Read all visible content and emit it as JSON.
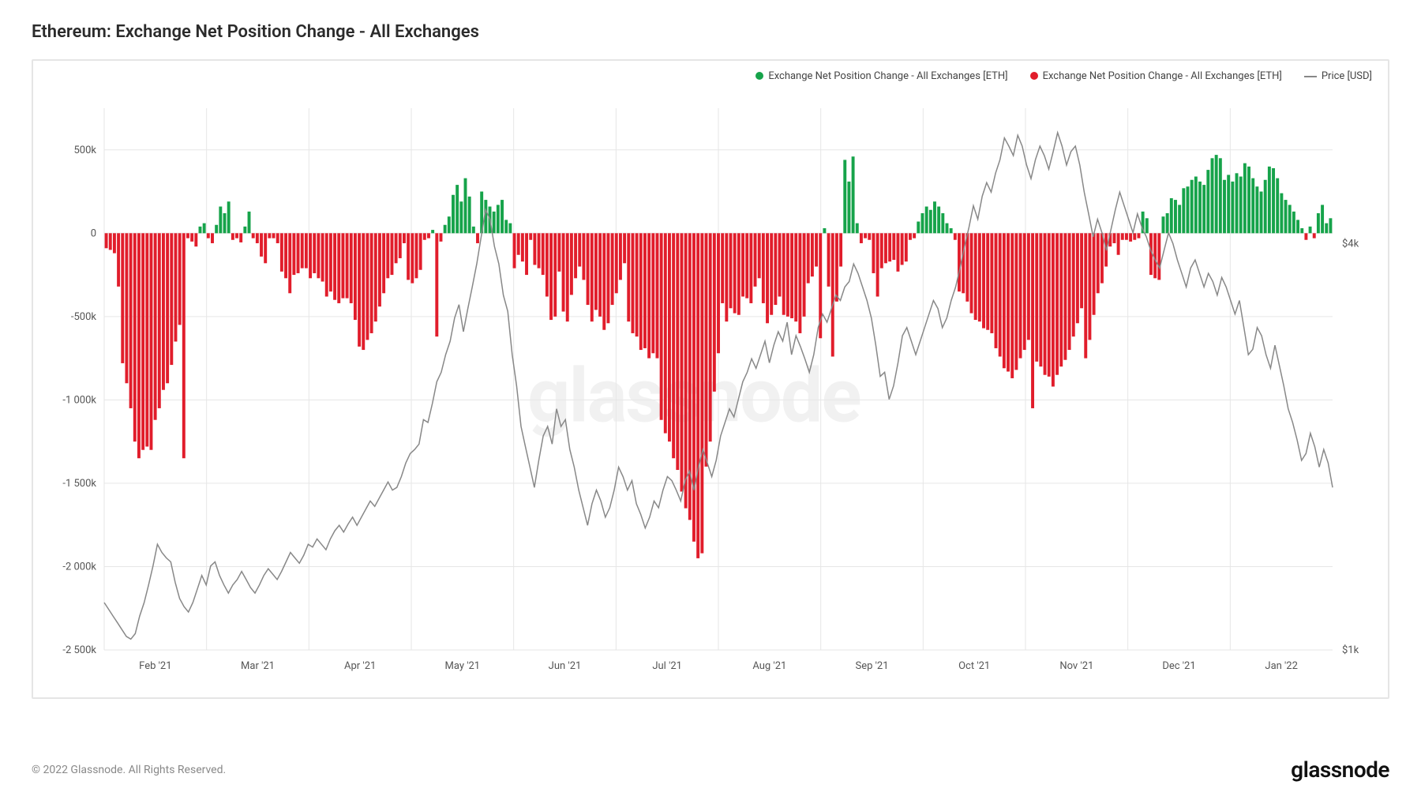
{
  "title": "Ethereum: Exchange Net Position Change - All Exchanges",
  "footer_text": "© 2022 Glassnode. All Rights Reserved.",
  "brand_text": "glassnode",
  "watermark_text": "glassnode",
  "legend": {
    "series_pos": "Exchange Net Position Change - All Exchanges [ETH]",
    "series_neg": "Exchange Net Position Change - All Exchanges [ETH]",
    "series_price": "Price [USD]"
  },
  "chart": {
    "type": "bar+line",
    "background_color": "#ffffff",
    "grid_color": "#e6e6e6",
    "border_color": "#e5e5e5",
    "colors": {
      "positive": "#16a34a",
      "negative": "#e11d2b",
      "price_line": "#8a8a8a"
    },
    "fonts": {
      "title_size": 22,
      "axis_size": 13
    },
    "y_left": {
      "min": -2500000,
      "max": 750000,
      "ticks": [
        -2500000,
        -2000000,
        -1500000,
        -1000000,
        -500000,
        0,
        500000
      ],
      "tick_labels": [
        "-2 500k",
        "-2 000k",
        "-1 500k",
        "-1 000k",
        "-500k",
        "0",
        "500k"
      ]
    },
    "y_right": {
      "label_top": "$4k",
      "label_bottom": "$1k",
      "price_min": 1000,
      "price_max": 5000
    },
    "x": {
      "months": [
        "Feb '21",
        "Mar '21",
        "Apr '21",
        "May '21",
        "Jun '21",
        "Jul '21",
        "Aug '21",
        "Sep '21",
        "Oct '21",
        "Nov '21",
        "Dec '21",
        "Jan '22"
      ]
    },
    "bars": [
      -90,
      -100,
      -120,
      -320,
      -780,
      -900,
      -1050,
      -1250,
      -1350,
      -1300,
      -1280,
      -1300,
      -1120,
      -1050,
      -940,
      -900,
      -790,
      -650,
      -550,
      -1350,
      -30,
      -50,
      -80,
      40,
      60,
      -30,
      -60,
      50,
      160,
      120,
      190,
      -40,
      -30,
      -55,
      40,
      130,
      -30,
      -60,
      -140,
      -180,
      -30,
      -30,
      -60,
      -230,
      -270,
      -360,
      -250,
      -240,
      -210,
      -210,
      -270,
      -240,
      -270,
      -290,
      -380,
      -350,
      -400,
      -420,
      -390,
      -390,
      -420,
      -520,
      -680,
      -700,
      -640,
      -600,
      -530,
      -440,
      -360,
      -270,
      -250,
      -180,
      -150,
      -60,
      -280,
      -300,
      -270,
      -220,
      -40,
      -30,
      20,
      -620,
      -50,
      50,
      100,
      230,
      290,
      190,
      330,
      220,
      40,
      -60,
      250,
      200,
      160,
      130,
      170,
      200,
      80,
      60,
      -210,
      -130,
      -170,
      -250,
      -40,
      -190,
      -210,
      -250,
      -380,
      -520,
      -500,
      -230,
      -470,
      -530,
      -370,
      -270,
      -200,
      -280,
      -430,
      -530,
      -460,
      -500,
      -580,
      -540,
      -430,
      -360,
      -280,
      -180,
      -530,
      -600,
      -620,
      -700,
      -690,
      -750,
      -720,
      -750,
      -1120,
      -1200,
      -1250,
      -1350,
      -1420,
      -1550,
      -1650,
      -1720,
      -1850,
      -1950,
      -1920,
      -1400,
      -1250,
      -950,
      -720,
      -420,
      -530,
      -450,
      -480,
      -490,
      -380,
      -390,
      -420,
      -320,
      -270,
      -420,
      -540,
      -490,
      -430,
      -380,
      -490,
      -500,
      -510,
      -530,
      -600,
      -500,
      -300,
      -260,
      -200,
      -630,
      30,
      -320,
      -740,
      -410,
      -200,
      440,
      310,
      460,
      60,
      -60,
      -30,
      -40,
      -240,
      -380,
      -210,
      -180,
      -170,
      -160,
      -230,
      -190,
      -170,
      -40,
      -30,
      70,
      120,
      160,
      140,
      190,
      160,
      120,
      60,
      30,
      -40,
      -350,
      -360,
      -410,
      -480,
      -520,
      -530,
      -570,
      -580,
      -600,
      -690,
      -740,
      -810,
      -830,
      -870,
      -820,
      -750,
      -700,
      -640,
      -1050,
      -770,
      -800,
      -850,
      -860,
      -920,
      -850,
      -800,
      -760,
      -700,
      -620,
      -540,
      -450,
      -750,
      -640,
      -490,
      -360,
      -300,
      -200,
      -80,
      -60,
      -130,
      -40,
      -40,
      -50,
      -40,
      -30,
      130,
      90,
      -250,
      -270,
      -280,
      100,
      120,
      210,
      200,
      170,
      270,
      280,
      320,
      340,
      310,
      290,
      380,
      450,
      470,
      450,
      320,
      350,
      310,
      360,
      340,
      420,
      400,
      330,
      280,
      250,
      320,
      400,
      390,
      330,
      240,
      200,
      170,
      130,
      80,
      30,
      -40,
      40,
      -30,
      120,
      170,
      60,
      90
    ],
    "bar_scale": 1000,
    "price": [
      1350,
      1300,
      1250,
      1200,
      1150,
      1100,
      1080,
      1120,
      1250,
      1350,
      1480,
      1620,
      1780,
      1720,
      1680,
      1650,
      1500,
      1380,
      1320,
      1280,
      1350,
      1450,
      1550,
      1480,
      1620,
      1650,
      1550,
      1480,
      1420,
      1480,
      1520,
      1580,
      1520,
      1460,
      1420,
      1480,
      1550,
      1600,
      1560,
      1520,
      1580,
      1650,
      1720,
      1680,
      1640,
      1700,
      1780,
      1760,
      1820,
      1780,
      1740,
      1820,
      1880,
      1920,
      1870,
      1930,
      1980,
      1920,
      1980,
      2040,
      2100,
      2060,
      2120,
      2180,
      2240,
      2180,
      2200,
      2280,
      2380,
      2450,
      2480,
      2520,
      2700,
      2680,
      2820,
      2980,
      3050,
      3180,
      3280,
      3450,
      3550,
      3350,
      3520,
      3680,
      3850,
      4050,
      4250,
      4180,
      3980,
      3850,
      3620,
      3500,
      3180,
      2950,
      2650,
      2500,
      2350,
      2200,
      2400,
      2580,
      2650,
      2520,
      2780,
      2650,
      2700,
      2480,
      2350,
      2180,
      2050,
      1920,
      2080,
      2180,
      2100,
      1980,
      2050,
      2180,
      2350,
      2280,
      2180,
      2250,
      2080,
      2000,
      1900,
      1980,
      2100,
      2050,
      2180,
      2280,
      2250,
      2180,
      2100,
      2250,
      2320,
      2180,
      2350,
      2480,
      2380,
      2280,
      2400,
      2580,
      2680,
      2780,
      2720,
      2850,
      2980,
      3050,
      3150,
      3080,
      3180,
      3280,
      3120,
      3250,
      3350,
      3280,
      3420,
      3180,
      3320,
      3240,
      3150,
      3050,
      3180,
      3380,
      3480,
      3420,
      3520,
      3620,
      3580,
      3680,
      3720,
      3850,
      3780,
      3680,
      3580,
      3450,
      3250,
      3020,
      3050,
      2850,
      2950,
      3120,
      3320,
      3380,
      3280,
      3180,
      3280,
      3380,
      3480,
      3580,
      3520,
      3380,
      3450,
      3580,
      3680,
      3820,
      3980,
      4120,
      4280,
      4180,
      4350,
      4450,
      4380,
      4520,
      4620,
      4780,
      4720,
      4650,
      4800,
      4720,
      4580,
      4480,
      4620,
      4720,
      4650,
      4550,
      4680,
      4820,
      4720,
      4580,
      4680,
      4720,
      4580,
      4380,
      4220,
      4050,
      4180,
      4080,
      3950,
      4100,
      4250,
      4380,
      4280,
      4180,
      4080,
      4220,
      4120,
      4050,
      3950,
      3880,
      3820,
      3950,
      4080,
      4000,
      3880,
      3780,
      3680,
      3820,
      3880,
      3780,
      3680,
      3780,
      3720,
      3620,
      3750,
      3680,
      3580,
      3480,
      3580,
      3380,
      3180,
      3220,
      3380,
      3320,
      3180,
      3080,
      3250,
      3100,
      2950,
      2780,
      2680,
      2550,
      2400,
      2450,
      2600,
      2500,
      2350,
      2480,
      2380,
      2200
    ]
  }
}
